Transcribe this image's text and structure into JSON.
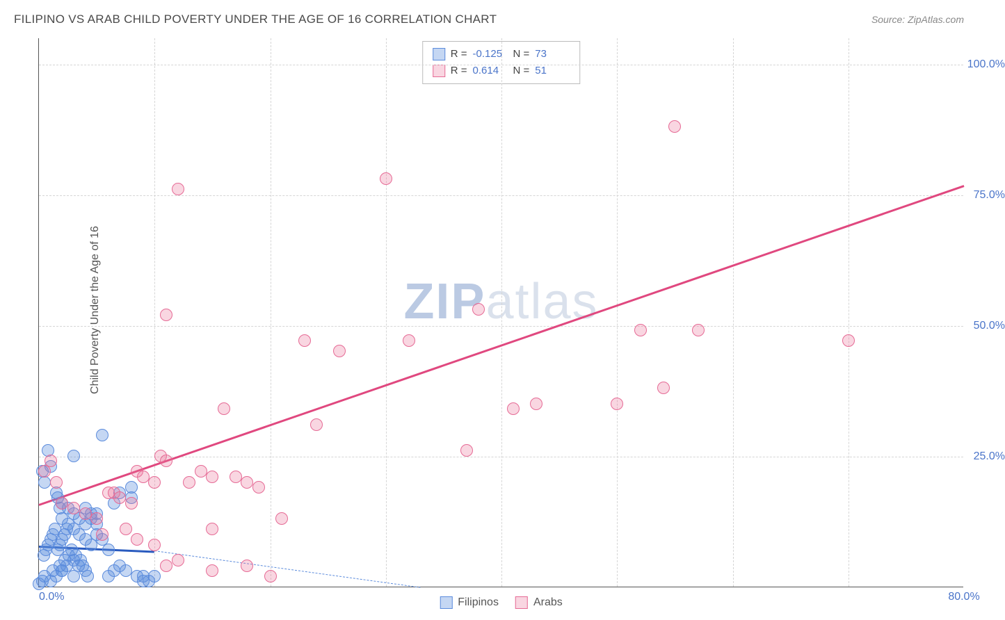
{
  "title": "FILIPINO VS ARAB CHILD POVERTY UNDER THE AGE OF 16 CORRELATION CHART",
  "source_prefix": "Source: ",
  "source_name": "ZipAtlas.com",
  "yaxis_title": "Child Poverty Under the Age of 16",
  "watermark_zip": "ZIP",
  "watermark_atlas": "atlas",
  "chart": {
    "type": "scatter",
    "background_color": "#ffffff",
    "grid_color": "#d5d5d5",
    "axis_color": "#555555",
    "label_color": "#4a74c9",
    "title_fontsize": 17,
    "label_fontsize": 16,
    "xlim": [
      0,
      80
    ],
    "ylim": [
      0,
      105
    ],
    "xticks": [
      {
        "value": 0,
        "label": "0.0%"
      },
      {
        "value": 80,
        "label": "80.0%"
      }
    ],
    "xticks_minor": [
      10,
      20,
      30,
      40,
      50,
      60,
      70
    ],
    "yticks": [
      {
        "value": 25,
        "label": "25.0%"
      },
      {
        "value": 50,
        "label": "50.0%"
      },
      {
        "value": 75,
        "label": "75.0%"
      },
      {
        "value": 100,
        "label": "100.0%"
      }
    ],
    "point_radius": 9,
    "point_stroke_width": 1.5
  },
  "stats_legend": {
    "series1": {
      "r_label": "R =",
      "r_value": "-0.125",
      "n_label": "N =",
      "n_value": "73"
    },
    "series2": {
      "r_label": "R =",
      "r_value": "0.614",
      "n_label": "N =",
      "n_value": "51"
    }
  },
  "bottom_legend": {
    "series1": "Filipinos",
    "series2": "Arabs"
  },
  "series": [
    {
      "id": "filipinos",
      "fill_color": "rgba(90,140,220,0.35)",
      "stroke_color": "#5b8bdc",
      "trend_color": "#2a5bbf",
      "trend_width": 3,
      "trend_start": [
        0,
        8
      ],
      "trend_end": [
        10,
        7
      ],
      "trend_dashed_end": [
        33,
        0
      ],
      "points": [
        [
          0,
          0.5
        ],
        [
          0.3,
          1
        ],
        [
          0.5,
          2
        ],
        [
          1,
          1
        ],
        [
          1.2,
          3
        ],
        [
          1.5,
          2
        ],
        [
          1.8,
          4
        ],
        [
          2,
          3
        ],
        [
          2.2,
          5
        ],
        [
          2.4,
          4
        ],
        [
          0.4,
          6
        ],
        [
          0.6,
          7
        ],
        [
          0.8,
          8
        ],
        [
          1,
          9
        ],
        [
          1.2,
          10
        ],
        [
          1.4,
          11
        ],
        [
          1.6,
          7
        ],
        [
          1.8,
          8
        ],
        [
          2,
          9
        ],
        [
          2.2,
          10
        ],
        [
          2.4,
          11
        ],
        [
          2.6,
          6
        ],
        [
          2.8,
          7
        ],
        [
          3,
          5
        ],
        [
          3.2,
          6
        ],
        [
          3.4,
          4
        ],
        [
          3.6,
          5
        ],
        [
          3.8,
          4
        ],
        [
          4,
          3
        ],
        [
          4.2,
          2
        ],
        [
          0.3,
          22
        ],
        [
          0.5,
          20
        ],
        [
          0.8,
          26
        ],
        [
          1,
          23
        ],
        [
          1.5,
          18
        ],
        [
          1.8,
          15
        ],
        [
          2,
          13
        ],
        [
          2.5,
          12
        ],
        [
          3,
          11
        ],
        [
          3,
          25
        ],
        [
          3.5,
          10
        ],
        [
          4,
          9
        ],
        [
          4.5,
          8
        ],
        [
          5,
          10
        ],
        [
          5.5,
          9
        ],
        [
          6,
          7
        ],
        [
          6.5,
          16
        ],
        [
          7,
          18
        ],
        [
          8,
          17
        ],
        [
          5.5,
          29
        ],
        [
          8,
          19
        ],
        [
          6,
          2
        ],
        [
          6.5,
          3
        ],
        [
          7,
          4
        ],
        [
          7.5,
          3
        ],
        [
          8.5,
          2
        ],
        [
          9,
          1
        ],
        [
          9.5,
          1
        ],
        [
          10,
          2
        ],
        [
          9,
          2
        ],
        [
          4,
          15
        ],
        [
          4.5,
          13
        ],
        [
          5,
          12
        ],
        [
          1.6,
          17
        ],
        [
          2,
          16
        ],
        [
          2.5,
          15
        ],
        [
          3,
          14
        ],
        [
          3.5,
          13
        ],
        [
          4,
          12
        ],
        [
          4.5,
          14
        ],
        [
          2,
          3
        ],
        [
          3,
          2
        ],
        [
          5,
          14
        ]
      ]
    },
    {
      "id": "arabs",
      "fill_color": "rgba(235,120,155,0.30)",
      "stroke_color": "#e66a95",
      "trend_color": "#e0487f",
      "trend_width": 3,
      "trend_start": [
        0,
        16
      ],
      "trend_end": [
        80,
        77
      ],
      "points": [
        [
          0.5,
          22
        ],
        [
          1,
          24
        ],
        [
          1.5,
          20
        ],
        [
          2,
          16
        ],
        [
          3,
          15
        ],
        [
          4,
          14
        ],
        [
          5,
          13
        ],
        [
          6,
          18
        ],
        [
          6.5,
          18
        ],
        [
          7,
          17
        ],
        [
          8,
          16
        ],
        [
          8.5,
          22
        ],
        [
          9,
          21
        ],
        [
          10,
          20
        ],
        [
          10.5,
          25
        ],
        [
          11,
          24
        ],
        [
          5.5,
          10
        ],
        [
          7.5,
          11
        ],
        [
          8.5,
          9
        ],
        [
          10,
          8
        ],
        [
          11,
          4
        ],
        [
          12,
          5
        ],
        [
          13,
          20
        ],
        [
          14,
          22
        ],
        [
          15,
          21
        ],
        [
          15,
          11
        ],
        [
          17,
          21
        ],
        [
          18,
          20
        ],
        [
          19,
          19
        ],
        [
          21,
          13
        ],
        [
          11,
          52
        ],
        [
          12,
          76
        ],
        [
          16,
          34
        ],
        [
          23,
          47
        ],
        [
          24,
          31
        ],
        [
          26,
          45
        ],
        [
          30,
          78
        ],
        [
          32,
          47
        ],
        [
          37,
          26
        ],
        [
          38,
          53
        ],
        [
          41,
          34
        ],
        [
          43,
          35
        ],
        [
          50,
          35
        ],
        [
          52,
          49
        ],
        [
          54,
          38
        ],
        [
          55,
          88
        ],
        [
          57,
          49
        ],
        [
          70,
          47
        ],
        [
          15,
          3
        ],
        [
          18,
          4
        ],
        [
          20,
          2
        ]
      ]
    }
  ]
}
